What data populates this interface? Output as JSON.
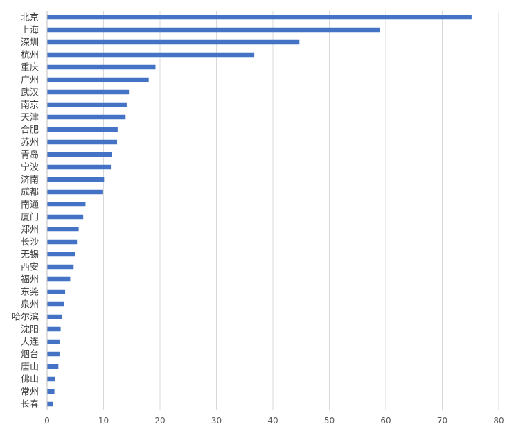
{
  "chart_data": {
    "type": "bar",
    "orientation": "horizontal",
    "title": "",
    "xlabel": "",
    "ylabel": "",
    "xlim": [
      0,
      80
    ],
    "x_ticks": [
      0,
      10,
      20,
      30,
      40,
      50,
      60,
      70,
      80
    ],
    "grid": "vertical",
    "legend": "none",
    "bar_color": "#4472c4",
    "categories": [
      "北京",
      "上海",
      "深圳",
      "杭州",
      "重庆",
      "广州",
      "武汉",
      "南京",
      "天津",
      "合肥",
      "苏州",
      "青岛",
      "宁波",
      "济南",
      "成都",
      "南通",
      "厦门",
      "郑州",
      "长沙",
      "无锡",
      "西安",
      "福州",
      "东莞",
      "泉州",
      "哈尔滨",
      "沈阳",
      "大连",
      "烟台",
      "唐山",
      "佛山",
      "常州",
      "长春"
    ],
    "values": [
      75.2,
      58.9,
      44.7,
      36.7,
      19.2,
      18.0,
      14.5,
      14.1,
      13.9,
      12.5,
      12.4,
      11.5,
      11.3,
      10.1,
      9.8,
      6.8,
      6.4,
      5.6,
      5.3,
      5.0,
      4.7,
      4.1,
      3.2,
      3.0,
      2.7,
      2.4,
      2.2,
      2.2,
      2.0,
      1.4,
      1.3,
      1.0
    ]
  }
}
